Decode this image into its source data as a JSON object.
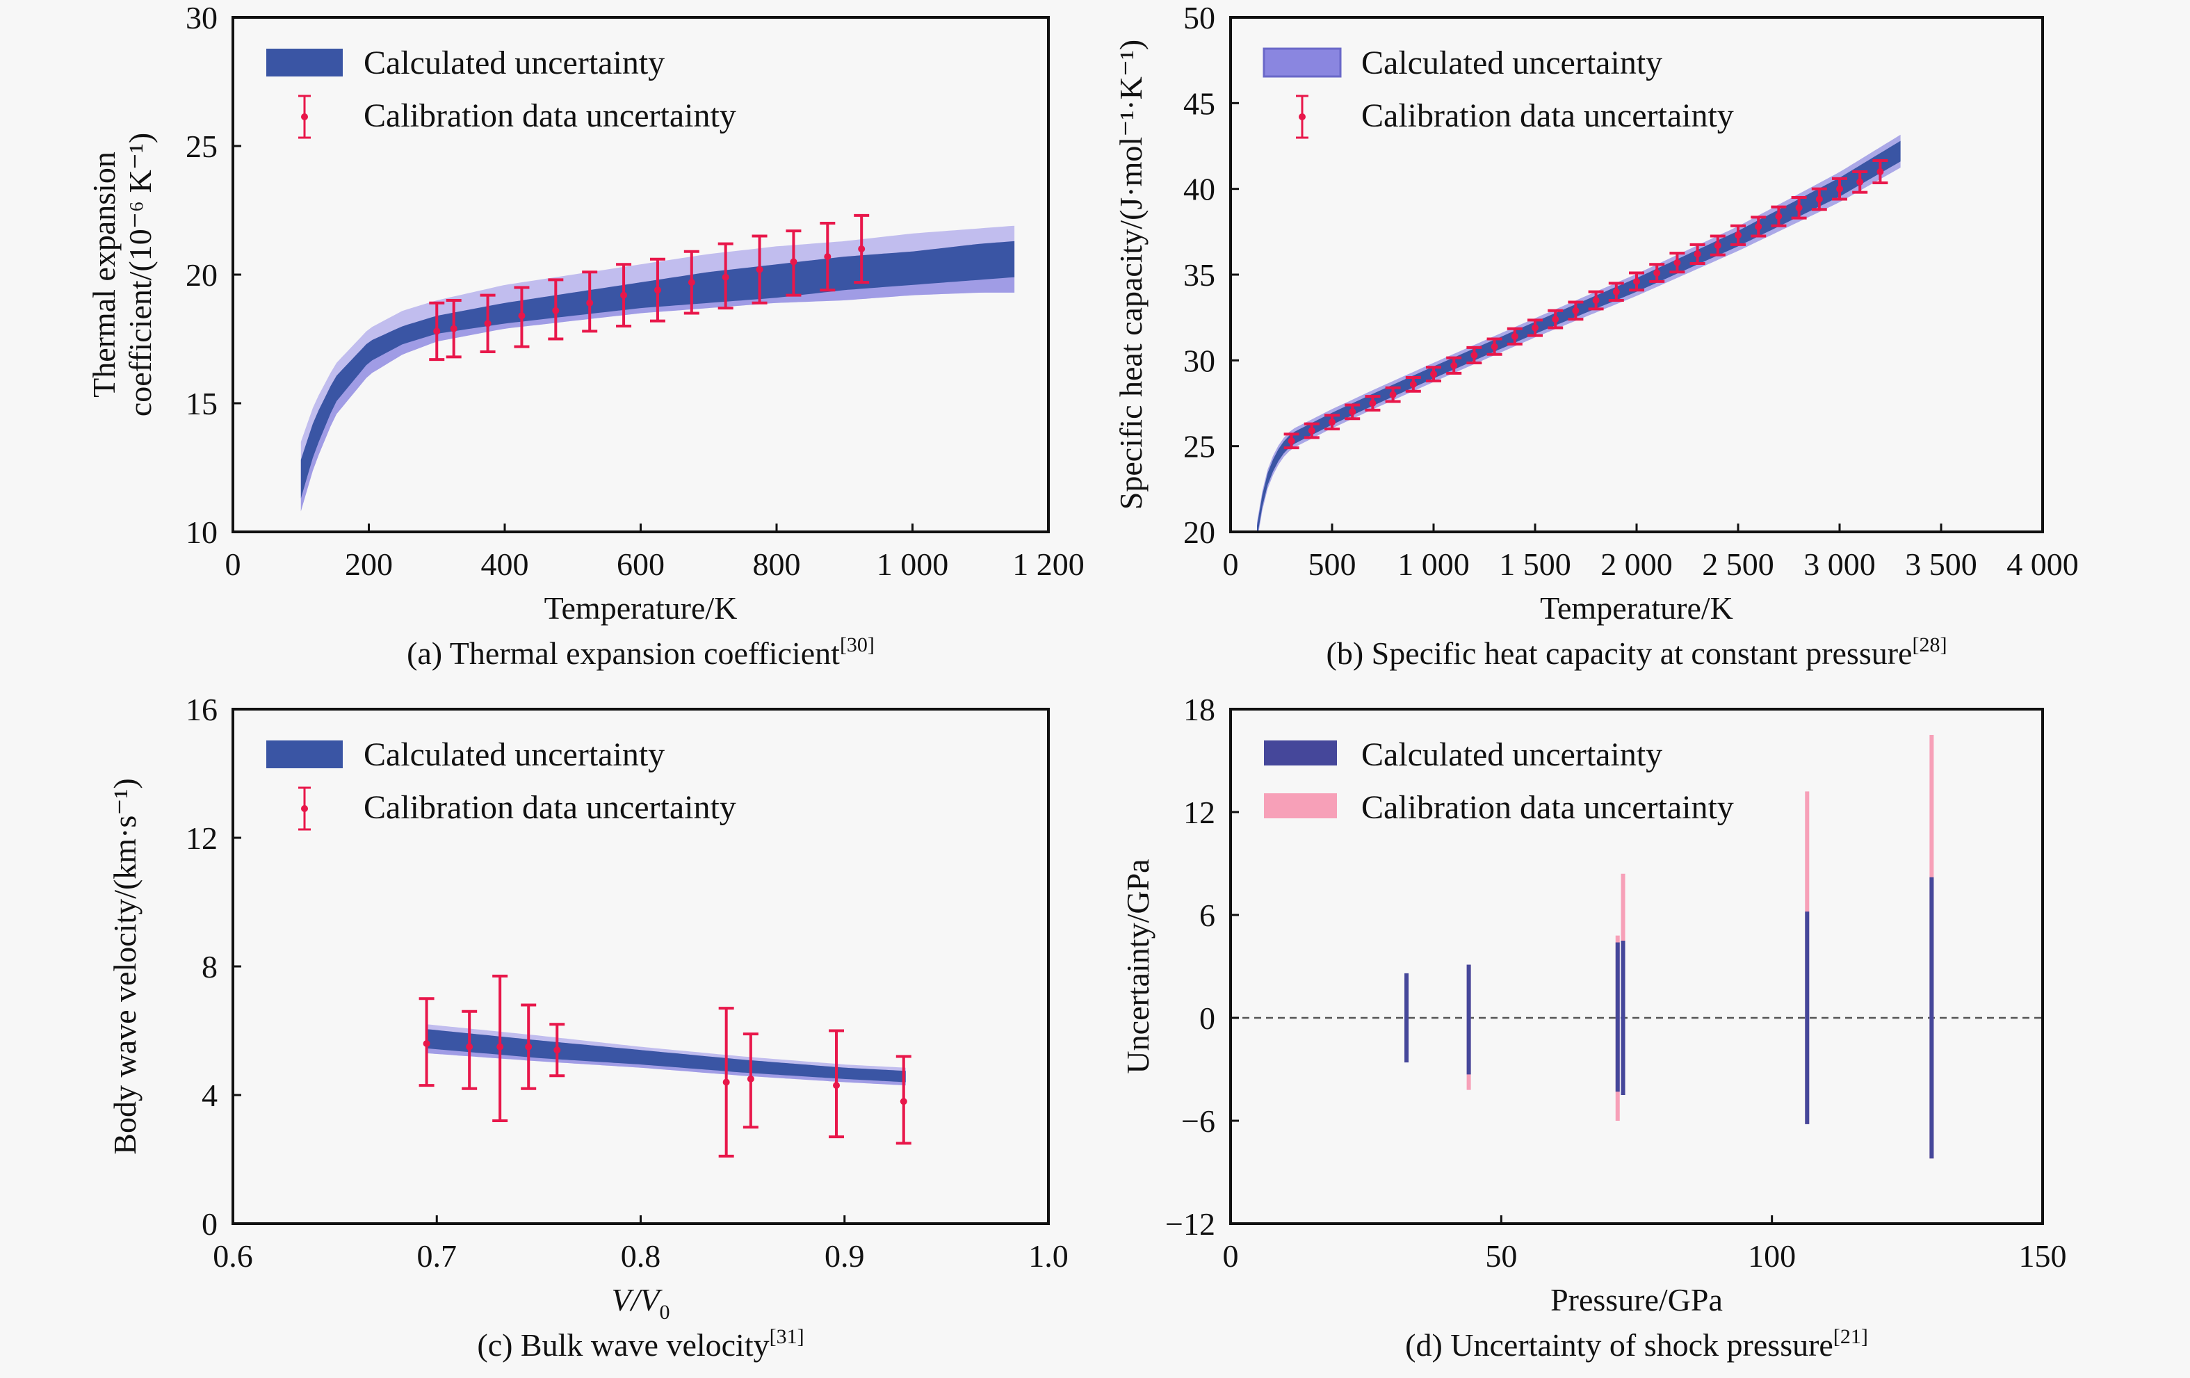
{
  "figure": {
    "colors": {
      "band_dark": "#3a55a4",
      "band_light": "#8a86e0",
      "band_pale": "#b7b3ec",
      "error_red": "#e8174a",
      "calib_pink": "#f7a0b8",
      "calc_bar": "#45479a",
      "axis": "#111111"
    }
  },
  "chart_data": [
    {
      "id": "a",
      "type": "area",
      "caption": "(a) Thermal expansion coefficient",
      "caption_ref": "[30]",
      "xlabel": "Temperature/K",
      "ylabel_line1": "Thermal expansion",
      "ylabel_line2": "coefficient/(10⁻⁶ K⁻¹)",
      "xlim": [
        0,
        1200
      ],
      "ylim": [
        10,
        30
      ],
      "xticks": [
        0,
        200,
        400,
        600,
        800,
        1000,
        1200
      ],
      "xtick_labels": [
        "0",
        "200",
        "400",
        "600",
        "800",
        "1 000",
        "1 200"
      ],
      "yticks": [
        10,
        15,
        20,
        25,
        30
      ],
      "ytick_labels": [
        "10",
        "15",
        "20",
        "25",
        "30"
      ],
      "legend": [
        "Calculated uncertainty",
        "Calibration data uncertainty"
      ],
      "legend_position": "top-left",
      "band": {
        "x": [
          100,
          120,
          150,
          200,
          250,
          300,
          400,
          500,
          600,
          700,
          800,
          900,
          1000,
          1100,
          1150
        ],
        "outer_low": [
          10.8,
          12.6,
          14.5,
          16.1,
          16.9,
          17.4,
          17.9,
          18.2,
          18.5,
          18.7,
          18.9,
          19.0,
          19.2,
          19.3,
          19.3
        ],
        "outer_high": [
          13.5,
          15.0,
          16.5,
          17.9,
          18.6,
          19.0,
          19.6,
          20.0,
          20.4,
          20.8,
          21.1,
          21.3,
          21.6,
          21.8,
          21.9
        ],
        "inner_low": [
          11.3,
          13.1,
          15.0,
          16.6,
          17.3,
          17.7,
          18.1,
          18.4,
          18.7,
          18.9,
          19.1,
          19.4,
          19.6,
          19.8,
          19.9
        ],
        "inner_high": [
          12.8,
          14.4,
          16.0,
          17.4,
          18.0,
          18.4,
          18.9,
          19.3,
          19.7,
          20.1,
          20.4,
          20.7,
          20.9,
          21.2,
          21.3
        ]
      },
      "points": {
        "x": [
          300,
          325,
          375,
          425,
          475,
          525,
          575,
          625,
          675,
          725,
          775,
          825,
          875,
          925
        ],
        "y": [
          17.8,
          17.9,
          18.1,
          18.4,
          18.6,
          18.9,
          19.2,
          19.4,
          19.7,
          19.9,
          20.2,
          20.5,
          20.7,
          21.0
        ],
        "err_low": [
          16.7,
          16.8,
          17.0,
          17.2,
          17.5,
          17.8,
          18.0,
          18.2,
          18.5,
          18.7,
          18.9,
          19.2,
          19.4,
          19.7
        ],
        "err_high": [
          18.9,
          19.0,
          19.2,
          19.5,
          19.8,
          20.1,
          20.4,
          20.6,
          20.9,
          21.2,
          21.5,
          21.7,
          22.0,
          22.3
        ]
      }
    },
    {
      "id": "b",
      "type": "area",
      "caption": "(b) Specific heat capacity at constant pressure",
      "caption_ref": "[28]",
      "xlabel": "Temperature/K",
      "ylabel_line1": "Specific heat capacity/(J·mol⁻¹·K⁻¹)",
      "xlim": [
        0,
        4000
      ],
      "ylim": [
        20,
        50
      ],
      "xticks": [
        0,
        500,
        1000,
        1500,
        2000,
        2500,
        3000,
        3500,
        4000
      ],
      "xtick_labels": [
        "0",
        "500",
        "1 000",
        "1 500",
        "2 000",
        "2 500",
        "3 000",
        "3 500",
        "4 000"
      ],
      "yticks": [
        20,
        25,
        30,
        35,
        40,
        45,
        50
      ],
      "ytick_labels": [
        "20",
        "25",
        "30",
        "35",
        "40",
        "45",
        "50"
      ],
      "legend": [
        "Calculated uncertainty",
        "Calibration data uncertainty"
      ],
      "legend_position": "top-left",
      "band": {
        "x": [
          130,
          150,
          180,
          220,
          260,
          300,
          400,
          500,
          700,
          1000,
          1500,
          2000,
          2500,
          3000,
          3300
        ],
        "center": [
          20.0,
          21.5,
          23.0,
          24.2,
          24.9,
          25.4,
          26.0,
          26.6,
          27.7,
          29.3,
          31.9,
          34.4,
          37.1,
          40.1,
          42.2
        ],
        "half_width": [
          0.35,
          0.35,
          0.35,
          0.35,
          0.35,
          0.35,
          0.35,
          0.35,
          0.35,
          0.35,
          0.35,
          0.4,
          0.45,
          0.55,
          0.6
        ]
      },
      "points": {
        "x": [
          300,
          400,
          500,
          600,
          700,
          800,
          900,
          1000,
          1100,
          1200,
          1300,
          1400,
          1500,
          1600,
          1700,
          1800,
          1900,
          2000,
          2100,
          2200,
          2300,
          2400,
          2500,
          2600,
          2700,
          2800,
          2900,
          3000,
          3100,
          3200
        ],
        "y": [
          25.3,
          25.9,
          26.4,
          27.0,
          27.5,
          28.0,
          28.6,
          29.2,
          29.7,
          30.3,
          30.8,
          31.4,
          31.9,
          32.4,
          32.9,
          33.5,
          34.0,
          34.6,
          35.1,
          35.7,
          36.2,
          36.7,
          37.3,
          37.8,
          38.4,
          38.9,
          39.4,
          40.0,
          40.4,
          41.0
        ],
        "err": [
          0.4,
          0.4,
          0.4,
          0.4,
          0.4,
          0.4,
          0.4,
          0.4,
          0.45,
          0.45,
          0.45,
          0.45,
          0.45,
          0.5,
          0.5,
          0.5,
          0.5,
          0.5,
          0.5,
          0.55,
          0.55,
          0.55,
          0.55,
          0.55,
          0.55,
          0.6,
          0.6,
          0.6,
          0.6,
          0.65
        ]
      }
    },
    {
      "id": "c",
      "type": "area",
      "caption": "(c) Bulk wave velocity",
      "caption_ref": "[31]",
      "xlabel": "V/V",
      "xlabel_sub": "0",
      "ylabel_line1": "Body wave velocity/(km·s⁻¹)",
      "xlim": [
        0.6,
        1.0
      ],
      "ylim": [
        0,
        16
      ],
      "xticks": [
        0.6,
        0.7,
        0.8,
        0.9,
        1.0
      ],
      "xtick_labels": [
        "0.6",
        "0.7",
        "0.8",
        "0.9",
        "1.0"
      ],
      "yticks": [
        0,
        4,
        8,
        12,
        16
      ],
      "ytick_labels": [
        "0",
        "4",
        "8",
        "12",
        "16"
      ],
      "legend": [
        "Calculated uncertainty",
        "Calibration data uncertainty"
      ],
      "legend_position": "top-left",
      "band": {
        "x": [
          0.695,
          0.75,
          0.8,
          0.85,
          0.9,
          0.93
        ],
        "outer_low": [
          5.3,
          5.05,
          4.85,
          4.6,
          4.4,
          4.3
        ],
        "outer_high": [
          6.2,
          5.85,
          5.5,
          5.2,
          4.95,
          4.85
        ],
        "inner_low": [
          5.45,
          5.15,
          4.95,
          4.7,
          4.5,
          4.4
        ],
        "inner_high": [
          6.05,
          5.7,
          5.4,
          5.1,
          4.85,
          4.75
        ]
      },
      "points": {
        "x": [
          0.695,
          0.716,
          0.731,
          0.745,
          0.759,
          0.842,
          0.854,
          0.896,
          0.929
        ],
        "y": [
          5.6,
          5.5,
          5.5,
          5.5,
          5.4,
          4.4,
          4.5,
          4.3,
          3.8
        ],
        "err_low": [
          4.3,
          4.2,
          3.2,
          4.2,
          4.6,
          2.1,
          3.0,
          2.7,
          2.5
        ],
        "err_high": [
          7.0,
          6.6,
          7.7,
          6.8,
          6.2,
          6.7,
          5.9,
          6.0,
          5.2
        ]
      }
    },
    {
      "id": "d",
      "type": "bar",
      "caption": "(d) Uncertainty of shock pressure",
      "caption_ref": "[21]",
      "xlabel": "Pressure/GPa",
      "ylabel_line1": "Uncertainty/GPa",
      "xlim": [
        0,
        150
      ],
      "ylim": [
        -12,
        18
      ],
      "xticks": [
        0,
        50,
        100,
        150
      ],
      "xtick_labels": [
        "0",
        "50",
        "100",
        "150"
      ],
      "yticks": [
        -12,
        -6,
        0,
        6,
        12,
        18
      ],
      "ytick_labels": [
        "−12",
        "−6",
        "0",
        "6",
        "12",
        "18"
      ],
      "zero_line": "dashed",
      "legend": [
        "Calculated uncertainty",
        "Calibration data uncertainty"
      ],
      "legend_position": "top-left",
      "series": [
        {
          "name": "Calibration data uncertainty",
          "x": [
            32.5,
            44,
            71.5,
            72.5,
            106.5,
            129.5
          ],
          "low": [
            -2.3,
            -4.2,
            -6.0,
            -4.5,
            -6.2,
            -8.2
          ],
          "high": [
            2.3,
            3.1,
            4.8,
            8.4,
            13.2,
            16.5
          ]
        },
        {
          "name": "Calculated uncertainty",
          "x": [
            32.5,
            44,
            71.5,
            72.5,
            106.5,
            129.5
          ],
          "low": [
            -2.6,
            -3.3,
            -4.3,
            -4.5,
            -6.2,
            -8.2
          ],
          "high": [
            2.6,
            3.1,
            4.4,
            4.5,
            6.2,
            8.2
          ]
        }
      ]
    }
  ]
}
